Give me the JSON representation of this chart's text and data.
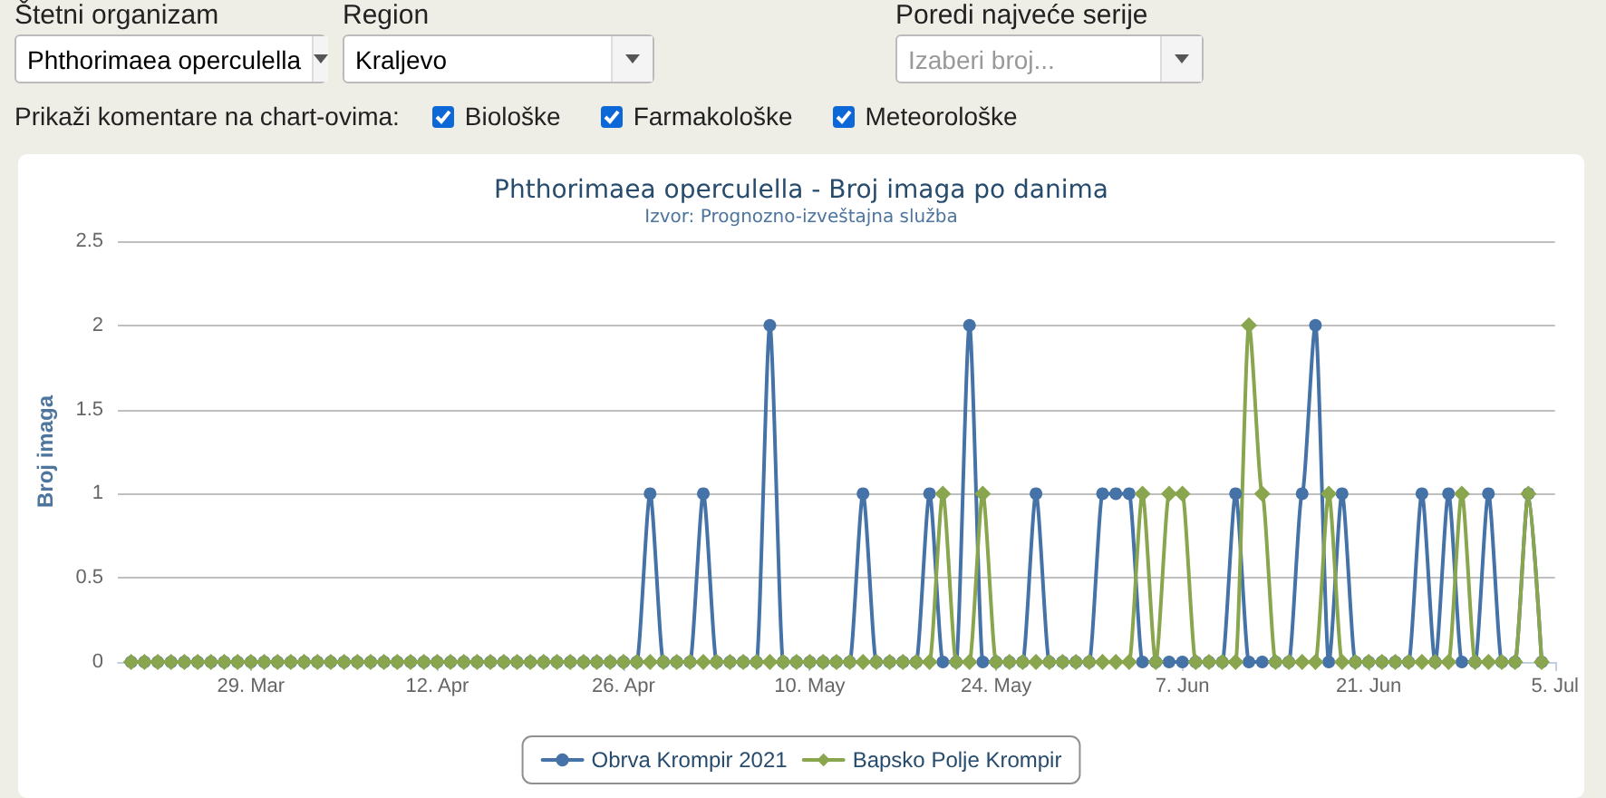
{
  "chart_data": {
    "type": "line",
    "title": "Phthorimaea operculella - Broj imaga po danima",
    "subtitle": "Izvor: Prognozno-izveštajna služba",
    "ylabel": "Broj imaga",
    "annotations": [
      "Štetni organizam",
      "Phthorimaea operculella",
      "Region",
      "Kraljevo",
      "Poredi najveće serije",
      "Izaberi broj...",
      "Prikaži komentare na chart-ovima:",
      "Biološke",
      "Farmakološke",
      "Meteorološke"
    ],
    "x": [
      "--03-20",
      "--03-21",
      "--03-22",
      "--03-23",
      "--03-24",
      "--03-25",
      "--03-26",
      "--03-27",
      "--03-28",
      "--03-29",
      "--03-30",
      "--03-31",
      "--04-01",
      "--04-02",
      "--04-03",
      "--04-04",
      "--04-05",
      "--04-06",
      "--04-07",
      "--04-08",
      "--04-09",
      "--04-10",
      "--04-11",
      "--04-12",
      "--04-13",
      "--04-14",
      "--04-15",
      "--04-16",
      "--04-17",
      "--04-18",
      "--04-19",
      "--04-20",
      "--04-21",
      "--04-22",
      "--04-23",
      "--04-24",
      "--04-25",
      "--04-26",
      "--04-27",
      "--04-28",
      "--04-29",
      "--04-30",
      "--05-01",
      "--05-02",
      "--05-03",
      "--05-04",
      "--05-05",
      "--05-06",
      "--05-07",
      "--05-08",
      "--05-09",
      "--05-10",
      "--05-11",
      "--05-12",
      "--05-13",
      "--05-14",
      "--05-15",
      "--05-16",
      "--05-17",
      "--05-18",
      "--05-19",
      "--05-20",
      "--05-21",
      "--05-22",
      "--05-23",
      "--05-24",
      "--05-25",
      "--05-26",
      "--05-27",
      "--05-28",
      "--05-29",
      "--05-30",
      "--05-31",
      "--06-01",
      "--06-02",
      "--06-03",
      "--06-04",
      "--06-05",
      "--06-06",
      "--06-07",
      "--06-08",
      "--06-09",
      "--06-10",
      "--06-11",
      "--06-12",
      "--06-13",
      "--06-14",
      "--06-15",
      "--06-16",
      "--06-17",
      "--06-18",
      "--06-19",
      "--06-20",
      "--06-21",
      "--06-22",
      "--06-23",
      "--06-24",
      "--06-25",
      "--06-26",
      "--06-27",
      "--06-28",
      "--06-29",
      "--06-30",
      "--07-01",
      "--07-02",
      "--07-03",
      "--07-04"
    ],
    "series": [
      {
        "name": "Obrva Krompir 2021",
        "color": "#4572a7",
        "marker": "circle",
        "values": [
          0,
          0,
          0,
          0,
          0,
          0,
          0,
          0,
          0,
          0,
          0,
          0,
          0,
          0,
          0,
          0,
          0,
          0,
          0,
          0,
          0,
          0,
          0,
          0,
          0,
          0,
          0,
          0,
          0,
          0,
          0,
          0,
          0,
          0,
          0,
          0,
          0,
          0,
          0,
          1,
          0,
          0,
          0,
          1,
          0,
          0,
          0,
          0,
          2,
          0,
          0,
          0,
          0,
          0,
          0,
          1,
          0,
          0,
          0,
          0,
          1,
          0,
          0,
          2,
          0,
          0,
          0,
          0,
          1,
          0,
          0,
          0,
          0,
          1,
          1,
          1,
          0,
          0,
          0,
          0,
          0,
          0,
          0,
          1,
          0,
          0,
          0,
          0,
          1,
          2,
          0,
          1,
          0,
          0,
          0,
          0,
          0,
          1,
          0,
          1,
          0,
          0,
          1,
          0,
          0,
          1,
          0
        ]
      },
      {
        "name": "Bapsko Polje Krompir",
        "color": "#89a54e",
        "marker": "diamond",
        "values": [
          0,
          0,
          0,
          0,
          0,
          0,
          0,
          0,
          0,
          0,
          0,
          0,
          0,
          0,
          0,
          0,
          0,
          0,
          0,
          0,
          0,
          0,
          0,
          0,
          0,
          0,
          0,
          0,
          0,
          0,
          0,
          0,
          0,
          0,
          0,
          0,
          0,
          0,
          0,
          0,
          0,
          0,
          0,
          0,
          0,
          0,
          0,
          0,
          0,
          0,
          0,
          0,
          0,
          0,
          0,
          0,
          0,
          0,
          0,
          0,
          0,
          1,
          0,
          0,
          1,
          0,
          0,
          0,
          0,
          0,
          0,
          0,
          0,
          0,
          0,
          0,
          1,
          0,
          1,
          1,
          0,
          0,
          0,
          0,
          2,
          1,
          0,
          0,
          0,
          0,
          1,
          0,
          0,
          0,
          0,
          0,
          0,
          0,
          0,
          0,
          1,
          0,
          0,
          0,
          0,
          1,
          0
        ]
      }
    ],
    "xlim": [
      "--03-19",
      "--07-05"
    ],
    "xticks": [
      {
        "value": "--03-29",
        "label": "29. Mar"
      },
      {
        "value": "--04-12",
        "label": "12. Apr"
      },
      {
        "value": "--04-26",
        "label": "26. Apr"
      },
      {
        "value": "--05-10",
        "label": "10. May"
      },
      {
        "value": "--05-24",
        "label": "24. May"
      },
      {
        "value": "--06-07",
        "label": "7. Jun"
      },
      {
        "value": "--06-21",
        "label": "21. Jun"
      },
      {
        "value": "--07-05",
        "label": "5. Jul"
      }
    ],
    "ylim": [
      0,
      2.5
    ],
    "yticks": [
      0,
      0.5,
      1,
      1.5,
      2,
      2.5
    ],
    "grid": "y",
    "legend": "bottom"
  }
}
